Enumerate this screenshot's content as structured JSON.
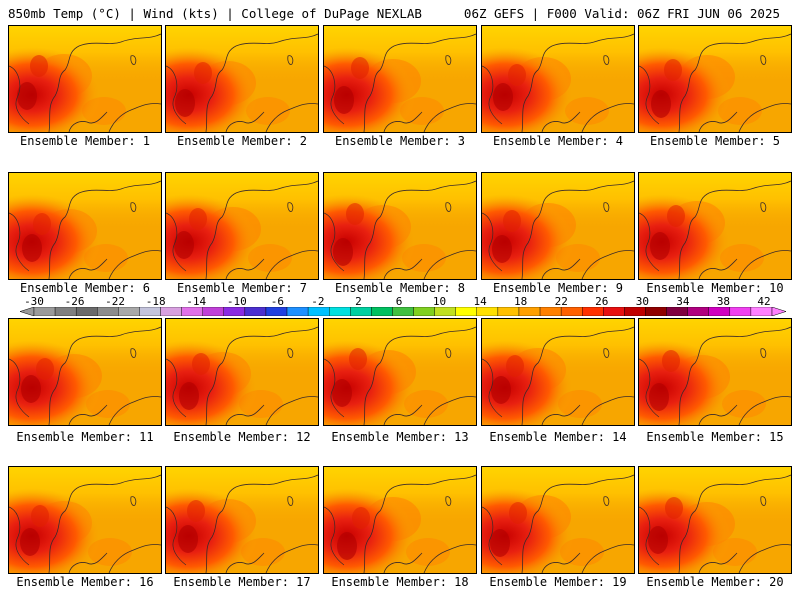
{
  "header": {
    "left": "850mb Temp (°C) | Wind (kts) | College of DuPage NEXLAB",
    "right": "06Z GEFS | F000 Valid: 06Z FRI JUN 06 2025"
  },
  "members": [
    "Ensemble Member: 1",
    "Ensemble Member: 2",
    "Ensemble Member: 3",
    "Ensemble Member: 4",
    "Ensemble Member: 5",
    "Ensemble Member: 6",
    "Ensemble Member: 7",
    "Ensemble Member: 8",
    "Ensemble Member: 9",
    "Ensemble Member: 10",
    "Ensemble Member: 11",
    "Ensemble Member: 12",
    "Ensemble Member: 13",
    "Ensemble Member: 14",
    "Ensemble Member: 15",
    "Ensemble Member: 16",
    "Ensemble Member: 17",
    "Ensemble Member: 18",
    "Ensemble Member: 19",
    "Ensemble Member: 20"
  ],
  "colorbar": {
    "labels": [
      "-30",
      "-26",
      "-22",
      "-18",
      "-14",
      "-10",
      "-6",
      "-2",
      "2",
      "6",
      "10",
      "14",
      "18",
      "22",
      "26",
      "30",
      "34",
      "38",
      "42"
    ],
    "colors": [
      "#9a9a9a",
      "#7f7f7f",
      "#6a6a6a",
      "#8c8c8c",
      "#a8a8a8",
      "#c4c4dc",
      "#d8a0e0",
      "#e070e8",
      "#c040d8",
      "#8a2be2",
      "#4b2fd0",
      "#2040e0",
      "#1e90ff",
      "#00c0ff",
      "#00e0e0",
      "#00d0a0",
      "#00c060",
      "#40c040",
      "#80d020",
      "#c0e020",
      "#ffff00",
      "#ffe000",
      "#ffc000",
      "#ffa000",
      "#ff8000",
      "#ff6000",
      "#ff3000",
      "#e81010",
      "#c00000",
      "#900000",
      "#800040",
      "#b00080",
      "#d000c0",
      "#f040f0",
      "#ff80ff"
    ]
  }
}
